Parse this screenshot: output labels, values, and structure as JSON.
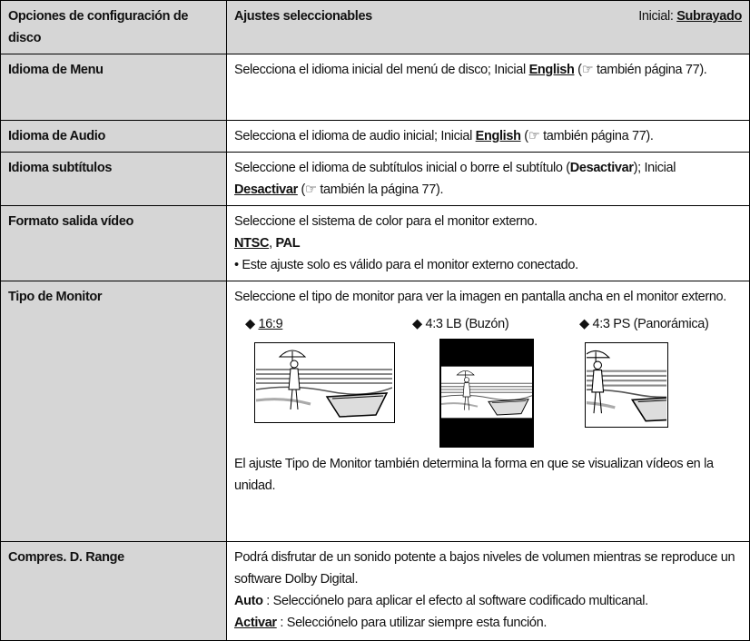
{
  "header": {
    "left": "Opciones de configuración de disco",
    "right": "Ajustes seleccionables",
    "initial_label": "Inicial:",
    "initial_value": "Subrayado"
  },
  "rows": [
    {
      "label": "Idioma de Menu",
      "parts": [
        "Selecciona el idioma inicial del menú de disco; Inicial ",
        "English",
        " (☞ también página 77)."
      ]
    },
    {
      "label": "Idioma de Audio",
      "parts": [
        "Selecciona el idioma de audio inicial; Inicial ",
        "English",
        " (☞ también página 77)."
      ]
    },
    {
      "label": "Idioma subtítulos",
      "parts": [
        "Seleccione el idioma de subtítulos inicial o borre el subtítulo (",
        "Desactivar",
        "); Inicial ",
        "Desactivar",
        " (☞ también la página 77)."
      ]
    },
    {
      "label": "Formato salida vídeo",
      "intro": "Seleccione el sistema de color para el monitor externo.",
      "options": [
        "NTSC",
        ", ",
        "PAL"
      ],
      "note": "Este ajuste solo es válido para el monitor externo conectado."
    },
    {
      "label": "Tipo de Monitor",
      "intro": "Seleccione el tipo de monitor para ver la imagen en pantalla ancha en el monitor externo.",
      "options": [
        "16:9",
        "4:3 LB (Buzón)",
        "4:3 PS (Panorámica)"
      ],
      "note": "El ajuste Tipo de Monitor también determina la forma en que se visualizan vídeos en la unidad."
    },
    {
      "label": "Compres. D. Range",
      "intro": "Podrá disfrutar de un sonido potente a bajos niveles de volumen mientras se reproduce un software Dolby Digital.",
      "items": [
        [
          "Auto",
          " : Selecciónelo para aplicar el efecto al software codificado multicanal."
        ],
        [
          "Activar",
          " : Selecciónelo para utilizar siempre esta función."
        ]
      ]
    }
  ]
}
